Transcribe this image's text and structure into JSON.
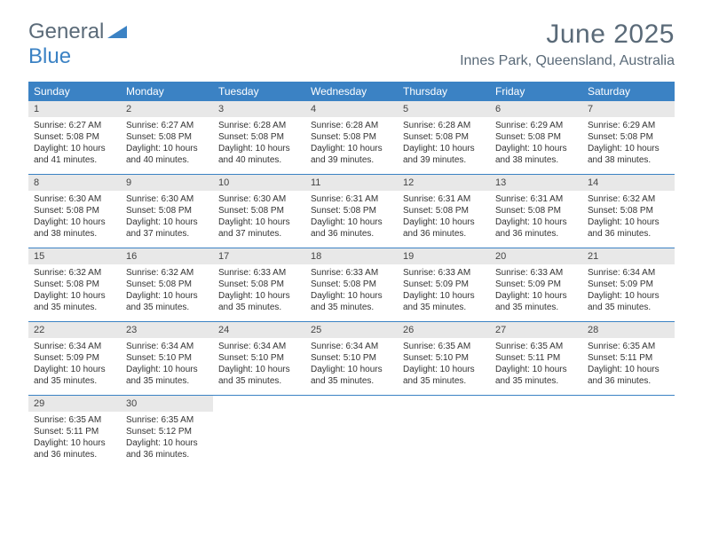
{
  "logo": {
    "part1": "General",
    "part2": "Blue"
  },
  "colors": {
    "accent": "#3b82c4",
    "header_text": "#5a6a78",
    "daynum_bg": "#e8e8e8",
    "body_text": "#333333",
    "background": "#ffffff"
  },
  "title": "June 2025",
  "location": "Innes Park, Queensland, Australia",
  "dow": [
    "Sunday",
    "Monday",
    "Tuesday",
    "Wednesday",
    "Thursday",
    "Friday",
    "Saturday"
  ],
  "weeks": [
    [
      {
        "n": "1",
        "sr": "6:27 AM",
        "ss": "5:08 PM",
        "dl": "10 hours and 41 minutes."
      },
      {
        "n": "2",
        "sr": "6:27 AM",
        "ss": "5:08 PM",
        "dl": "10 hours and 40 minutes."
      },
      {
        "n": "3",
        "sr": "6:28 AM",
        "ss": "5:08 PM",
        "dl": "10 hours and 40 minutes."
      },
      {
        "n": "4",
        "sr": "6:28 AM",
        "ss": "5:08 PM",
        "dl": "10 hours and 39 minutes."
      },
      {
        "n": "5",
        "sr": "6:28 AM",
        "ss": "5:08 PM",
        "dl": "10 hours and 39 minutes."
      },
      {
        "n": "6",
        "sr": "6:29 AM",
        "ss": "5:08 PM",
        "dl": "10 hours and 38 minutes."
      },
      {
        "n": "7",
        "sr": "6:29 AM",
        "ss": "5:08 PM",
        "dl": "10 hours and 38 minutes."
      }
    ],
    [
      {
        "n": "8",
        "sr": "6:30 AM",
        "ss": "5:08 PM",
        "dl": "10 hours and 38 minutes."
      },
      {
        "n": "9",
        "sr": "6:30 AM",
        "ss": "5:08 PM",
        "dl": "10 hours and 37 minutes."
      },
      {
        "n": "10",
        "sr": "6:30 AM",
        "ss": "5:08 PM",
        "dl": "10 hours and 37 minutes."
      },
      {
        "n": "11",
        "sr": "6:31 AM",
        "ss": "5:08 PM",
        "dl": "10 hours and 36 minutes."
      },
      {
        "n": "12",
        "sr": "6:31 AM",
        "ss": "5:08 PM",
        "dl": "10 hours and 36 minutes."
      },
      {
        "n": "13",
        "sr": "6:31 AM",
        "ss": "5:08 PM",
        "dl": "10 hours and 36 minutes."
      },
      {
        "n": "14",
        "sr": "6:32 AM",
        "ss": "5:08 PM",
        "dl": "10 hours and 36 minutes."
      }
    ],
    [
      {
        "n": "15",
        "sr": "6:32 AM",
        "ss": "5:08 PM",
        "dl": "10 hours and 35 minutes."
      },
      {
        "n": "16",
        "sr": "6:32 AM",
        "ss": "5:08 PM",
        "dl": "10 hours and 35 minutes."
      },
      {
        "n": "17",
        "sr": "6:33 AM",
        "ss": "5:08 PM",
        "dl": "10 hours and 35 minutes."
      },
      {
        "n": "18",
        "sr": "6:33 AM",
        "ss": "5:08 PM",
        "dl": "10 hours and 35 minutes."
      },
      {
        "n": "19",
        "sr": "6:33 AM",
        "ss": "5:09 PM",
        "dl": "10 hours and 35 minutes."
      },
      {
        "n": "20",
        "sr": "6:33 AM",
        "ss": "5:09 PM",
        "dl": "10 hours and 35 minutes."
      },
      {
        "n": "21",
        "sr": "6:34 AM",
        "ss": "5:09 PM",
        "dl": "10 hours and 35 minutes."
      }
    ],
    [
      {
        "n": "22",
        "sr": "6:34 AM",
        "ss": "5:09 PM",
        "dl": "10 hours and 35 minutes."
      },
      {
        "n": "23",
        "sr": "6:34 AM",
        "ss": "5:10 PM",
        "dl": "10 hours and 35 minutes."
      },
      {
        "n": "24",
        "sr": "6:34 AM",
        "ss": "5:10 PM",
        "dl": "10 hours and 35 minutes."
      },
      {
        "n": "25",
        "sr": "6:34 AM",
        "ss": "5:10 PM",
        "dl": "10 hours and 35 minutes."
      },
      {
        "n": "26",
        "sr": "6:35 AM",
        "ss": "5:10 PM",
        "dl": "10 hours and 35 minutes."
      },
      {
        "n": "27",
        "sr": "6:35 AM",
        "ss": "5:11 PM",
        "dl": "10 hours and 35 minutes."
      },
      {
        "n": "28",
        "sr": "6:35 AM",
        "ss": "5:11 PM",
        "dl": "10 hours and 36 minutes."
      }
    ],
    [
      {
        "n": "29",
        "sr": "6:35 AM",
        "ss": "5:11 PM",
        "dl": "10 hours and 36 minutes."
      },
      {
        "n": "30",
        "sr": "6:35 AM",
        "ss": "5:12 PM",
        "dl": "10 hours and 36 minutes."
      },
      null,
      null,
      null,
      null,
      null
    ]
  ],
  "labels": {
    "sunrise": "Sunrise:",
    "sunset": "Sunset:",
    "daylight": "Daylight:"
  }
}
